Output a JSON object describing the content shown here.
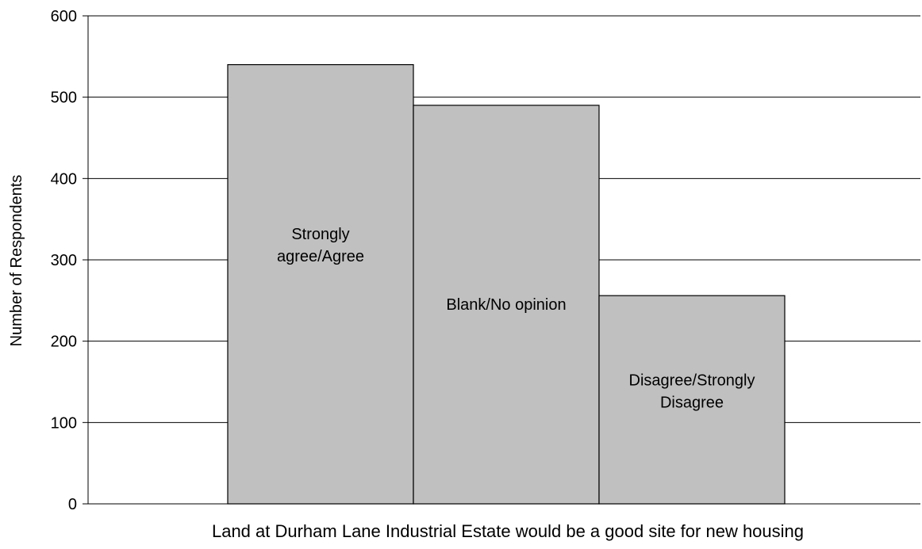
{
  "chart_data": {
    "type": "bar",
    "categories": [
      "Strongly agree/Agree",
      "Blank/No opinion",
      "Disagree/Strongly Disagree"
    ],
    "category_label_lines": [
      [
        "Strongly",
        "agree/Agree"
      ],
      [
        "Blank/No opinion"
      ],
      [
        "Disagree/Strongly",
        "Disagree"
      ]
    ],
    "values": [
      540,
      490,
      256
    ],
    "ylabel": "Number of Respondents",
    "xlabel": "Land at Durham Lane Industrial Estate would be a good site for new housing",
    "ylim": [
      0,
      600
    ],
    "yticks": [
      0,
      100,
      200,
      300,
      400,
      500,
      600
    ],
    "grid": true,
    "legend": "none",
    "bar_color": "#c0c0c0",
    "bar_stroke": "#000000"
  }
}
